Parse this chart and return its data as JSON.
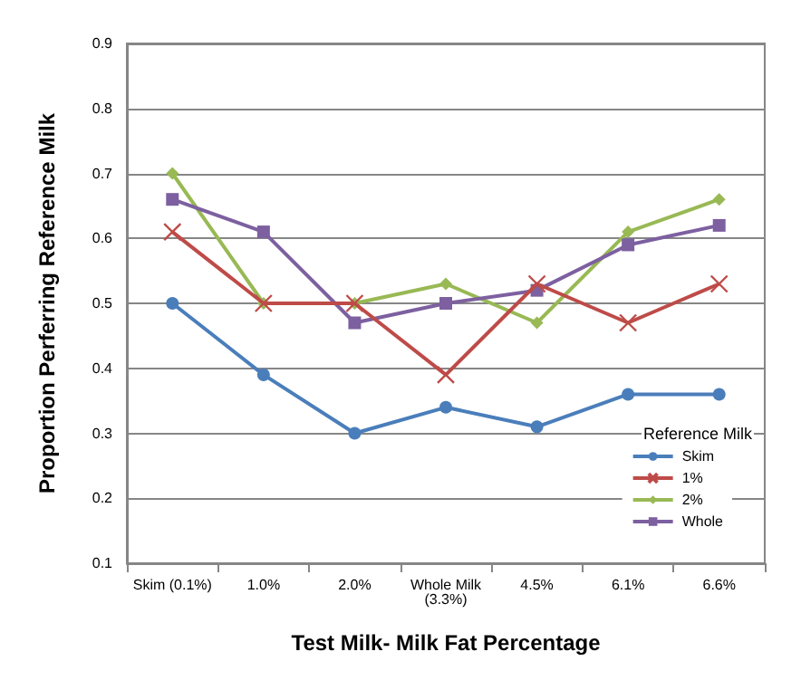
{
  "chart_data": {
    "type": "line",
    "xlabel": "Test Milk- Milk Fat Percentage",
    "ylabel": "Proportion Perferring Reference Milk",
    "legend_title": "Reference Milk",
    "legend": "bottom right",
    "grid": "y",
    "ylim": [
      0.1,
      0.9
    ],
    "yticks": [
      0.1,
      0.2,
      0.3,
      0.4,
      0.5,
      0.6,
      0.7,
      0.8,
      0.9
    ],
    "categories": [
      "Skim (0.1%)",
      "1.0%",
      "2.0%",
      "Whole Milk\n(3.3%)",
      "4.5%",
      "6.1%",
      "6.6%"
    ],
    "series": [
      {
        "name": "Skim",
        "color": "#4a7ebb",
        "marker": "circle",
        "values": [
          0.5,
          0.39,
          0.3,
          0.34,
          0.31,
          0.36,
          0.36
        ]
      },
      {
        "name": "1%",
        "color": "#be4b48",
        "marker": "cross",
        "values": [
          0.61,
          0.5,
          0.5,
          0.39,
          0.53,
          0.47,
          0.53
        ]
      },
      {
        "name": "2%",
        "color": "#98b954",
        "marker": "diamond",
        "values": [
          0.7,
          0.5,
          0.5,
          0.53,
          0.47,
          0.61,
          0.66
        ]
      },
      {
        "name": "Whole",
        "color": "#7d60a0",
        "marker": "square",
        "values": [
          0.66,
          0.61,
          0.47,
          0.5,
          0.52,
          0.59,
          0.62
        ]
      }
    ]
  }
}
